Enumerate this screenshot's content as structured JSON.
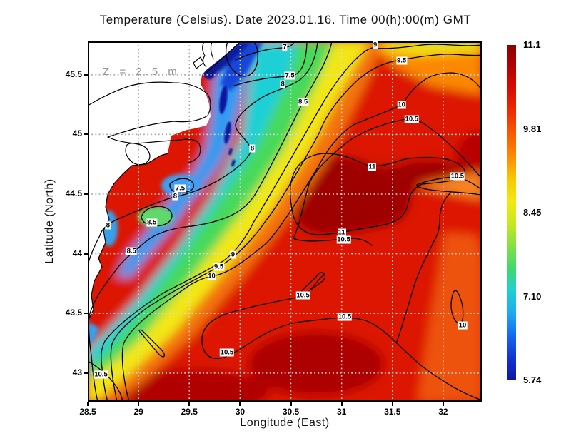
{
  "title": "Temperature (Celsius). Date 2023.01.16. Time 00(h):00(m) GMT",
  "depth_label": "Z = 2.5 m",
  "chart_data": {
    "type": "heatmap",
    "subtype": "filled-contour-map",
    "variable": "Sea water temperature",
    "units": "Celsius",
    "date": "2023.01.16",
    "time": "00(h):00(m) GMT",
    "depth": "2.5 m",
    "title": "Temperature (Celsius). Date 2023.01.16. Time 00(h):00(m) GMT",
    "xlabel": "Longitude (East)",
    "ylabel": "Latitude (North)",
    "x_range": [
      28.5,
      32.38
    ],
    "y_range": [
      42.76,
      45.78
    ],
    "x_ticks": [
      "28.5",
      "29",
      "29.5",
      "30",
      "30.5",
      "31",
      "31.5",
      "32"
    ],
    "y_ticks": [
      "45.5",
      "45",
      "44.5",
      "44",
      "43.5",
      "43"
    ],
    "grid": true,
    "legend_position": "right-colorbar",
    "colorbar": {
      "min": 5.74,
      "max": 11.1,
      "tick_labels": [
        "11.1",
        "9.81",
        "8.45",
        "7.10",
        "5.74"
      ],
      "gradient_top_to_bottom": [
        "#8b0000",
        "#b40200",
        "#d90d02",
        "#ee2d00",
        "#f85c00",
        "#fc8c00",
        "#f8c800",
        "#f2ea10",
        "#c6e722",
        "#84e046",
        "#3fd96c",
        "#1ecfd4",
        "#1baaf2",
        "#1668f0",
        "#1233d6",
        "#0d17a0"
      ]
    },
    "contour_levels": [
      7,
      7.5,
      8,
      8.5,
      9,
      9.5,
      10,
      10.5,
      11
    ],
    "contour_labels": [
      {
        "value": "7",
        "lon": 30.44,
        "lat": 45.73
      },
      {
        "value": "9",
        "lon": 31.33,
        "lat": 45.75
      },
      {
        "value": "9.5",
        "lon": 31.59,
        "lat": 45.62
      },
      {
        "value": "7.5",
        "lon": 30.49,
        "lat": 45.49
      },
      {
        "value": "8",
        "lon": 30.42,
        "lat": 45.42
      },
      {
        "value": "8.5",
        "lon": 30.62,
        "lat": 45.27
      },
      {
        "value": "10",
        "lon": 31.59,
        "lat": 45.25
      },
      {
        "value": "10.5",
        "lon": 31.69,
        "lat": 45.13
      },
      {
        "value": "8",
        "lon": 30.12,
        "lat": 44.88
      },
      {
        "value": "11",
        "lon": 31.3,
        "lat": 44.73
      },
      {
        "value": "10.5",
        "lon": 32.14,
        "lat": 44.65
      },
      {
        "value": "7.5",
        "lon": 29.41,
        "lat": 44.55
      },
      {
        "value": "8",
        "lon": 29.36,
        "lat": 44.48
      },
      {
        "value": "8.5",
        "lon": 29.13,
        "lat": 44.26
      },
      {
        "value": "8",
        "lon": 28.7,
        "lat": 44.24
      },
      {
        "value": "8.5",
        "lon": 28.93,
        "lat": 44.02
      },
      {
        "value": "9",
        "lon": 29.93,
        "lat": 43.99
      },
      {
        "value": "9.5",
        "lon": 29.79,
        "lat": 43.89
      },
      {
        "value": "10",
        "lon": 29.72,
        "lat": 43.81
      },
      {
        "value": "11",
        "lon": 31.0,
        "lat": 44.18
      },
      {
        "value": "10.5",
        "lon": 31.02,
        "lat": 44.12
      },
      {
        "value": "10.5",
        "lon": 30.62,
        "lat": 43.65
      },
      {
        "value": "10.5",
        "lon": 31.03,
        "lat": 43.47
      },
      {
        "value": "10",
        "lon": 32.19,
        "lat": 43.4
      },
      {
        "value": "10.5",
        "lon": 29.87,
        "lat": 43.17
      },
      {
        "value": "10.5",
        "lon": 28.63,
        "lat": 42.99
      }
    ],
    "annotations": [
      {
        "text": "Z = 2.5 m",
        "lon_approx": 28.65,
        "lat_approx": 45.55
      }
    ],
    "pattern_notes": "Cold water 5.7-8 C (blue/cyan) hugging NW coast and Danube delta; warm core above 11 C (dark red) in SE open sea; land shown white with coastline"
  }
}
